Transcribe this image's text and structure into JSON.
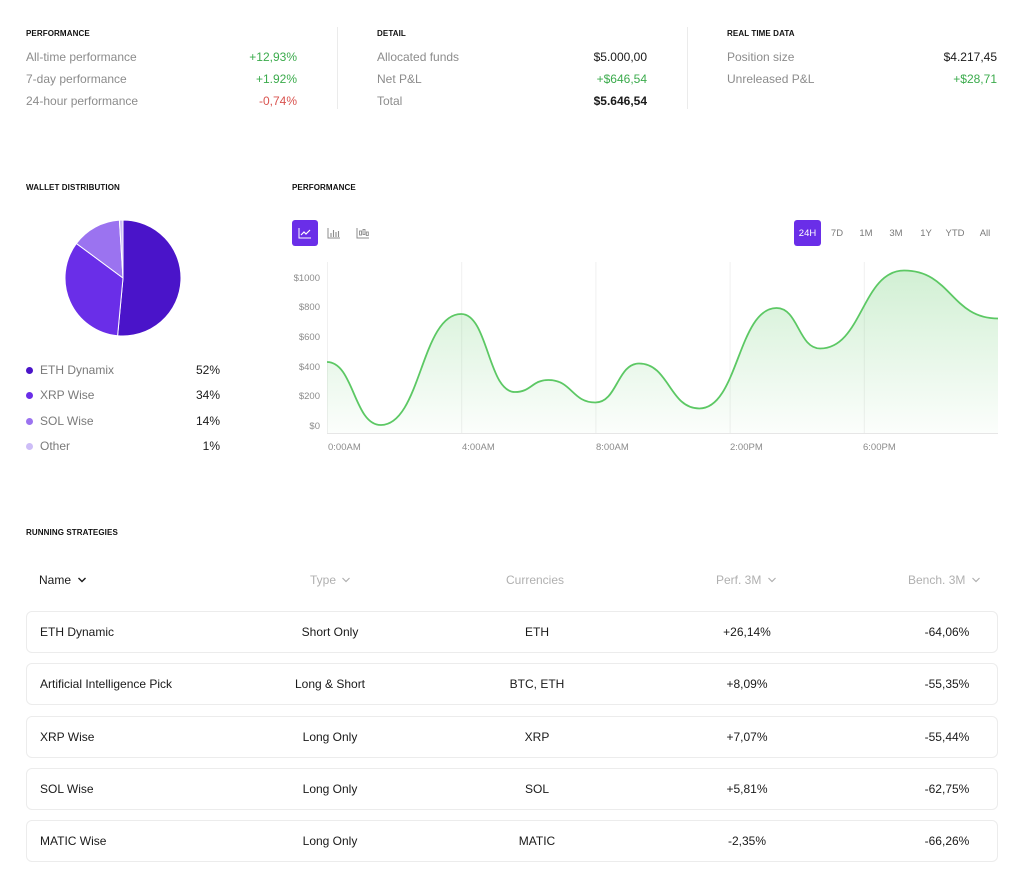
{
  "performance": {
    "title": "PERFORMANCE",
    "rows": [
      {
        "label": "All-time performance",
        "value": "+12,93%",
        "tone": "green"
      },
      {
        "label": "7-day performance",
        "value": "+1.92%",
        "tone": "green"
      },
      {
        "label": "24-hour performance",
        "value": "-0,74%",
        "tone": "red"
      }
    ]
  },
  "detail": {
    "title": "DETAIL",
    "rows": [
      {
        "label": "Allocated funds",
        "value": "$5.000,00",
        "tone": "dark"
      },
      {
        "label": "Net P&L",
        "value": "+$646,54",
        "tone": "green"
      },
      {
        "label": "Total",
        "value": "$5.646,54",
        "tone": "dark"
      }
    ]
  },
  "realtime": {
    "title": "REAL TIME DATA",
    "rows": [
      {
        "label": "Position size",
        "value": "$4.217,45",
        "tone": "dark"
      },
      {
        "label": "Unreleased P&L",
        "value": "+$28,71",
        "tone": "green"
      }
    ]
  },
  "wallet": {
    "title": "WALLET DISTRIBUTION",
    "items": [
      {
        "label": "ETH Dynamix",
        "pct": "52%",
        "value": 52,
        "color": "#4a14c9"
      },
      {
        "label": "XRP Wise",
        "pct": "34%",
        "value": 34,
        "color": "#6a2ee8"
      },
      {
        "label": "SOL Wise",
        "pct": "14%",
        "value": 14,
        "color": "#9b73f0"
      },
      {
        "label": "Other",
        "pct": "1%",
        "value": 1,
        "color": "#cdbdf7"
      }
    ]
  },
  "perf_chart": {
    "title": "PERFORMANCE",
    "chart_types": [
      {
        "name": "line-chart-icon",
        "active": true
      },
      {
        "name": "bar-chart-icon",
        "active": false
      },
      {
        "name": "candlestick-chart-icon",
        "active": false
      }
    ],
    "ranges": [
      {
        "label": "24H",
        "active": true
      },
      {
        "label": "7D",
        "active": false
      },
      {
        "label": "1M",
        "active": false
      },
      {
        "label": "3M",
        "active": false
      },
      {
        "label": "1Y",
        "active": false
      },
      {
        "label": "YTD",
        "active": false
      },
      {
        "label": "All",
        "active": false
      }
    ],
    "accent": "#6a2ee8",
    "line_color": "#5cc864"
  },
  "chart_data": {
    "type": "area",
    "yticks": [
      "$1000",
      "$800",
      "$600",
      "$400",
      "$200",
      "$0"
    ],
    "ylim": [
      0,
      1000
    ],
    "xticks": [
      "0:00AM",
      "4:00AM",
      "8:00AM",
      "2:00PM",
      "6:00PM"
    ],
    "series": [
      {
        "x": [
          0,
          1.6,
          4,
          5.6,
          6.6,
          8,
          9.3,
          11.1,
          13.4,
          14.7,
          17.2,
          20
        ],
        "values": [
          420,
          0,
          740,
          220,
          300,
          150,
          410,
          110,
          780,
          510,
          1030,
          710
        ]
      }
    ],
    "xlim": [
      0,
      20
    ]
  },
  "strategies": {
    "title": "RUNNING STRATEGIES",
    "headers": {
      "name": "Name",
      "type": "Type",
      "currencies": "Currencies",
      "perf": "Perf. 3M",
      "bench": "Bench. 3M"
    },
    "rows": [
      {
        "name": "ETH Dynamic",
        "type": "Short Only",
        "currencies": "ETH",
        "perf": "+26,14%",
        "perf_tone": "green",
        "bench": "-64,06%"
      },
      {
        "name": "Artificial Intelligence Pick",
        "type": "Long & Short",
        "currencies": "BTC, ETH",
        "perf": "+8,09%",
        "perf_tone": "green",
        "bench": "-55,35%"
      },
      {
        "name": "XRP Wise",
        "type": "Long Only",
        "currencies": "XRP",
        "perf": "+7,07%",
        "perf_tone": "green",
        "bench": "-55,44%"
      },
      {
        "name": "SOL Wise",
        "type": "Long Only",
        "currencies": "SOL",
        "perf": "+5,81%",
        "perf_tone": "green",
        "bench": "-62,75%"
      },
      {
        "name": "MATIC Wise",
        "type": "Long Only",
        "currencies": "MATIC",
        "perf": "-2,35%",
        "perf_tone": "red",
        "bench": "-66,26%"
      }
    ]
  }
}
